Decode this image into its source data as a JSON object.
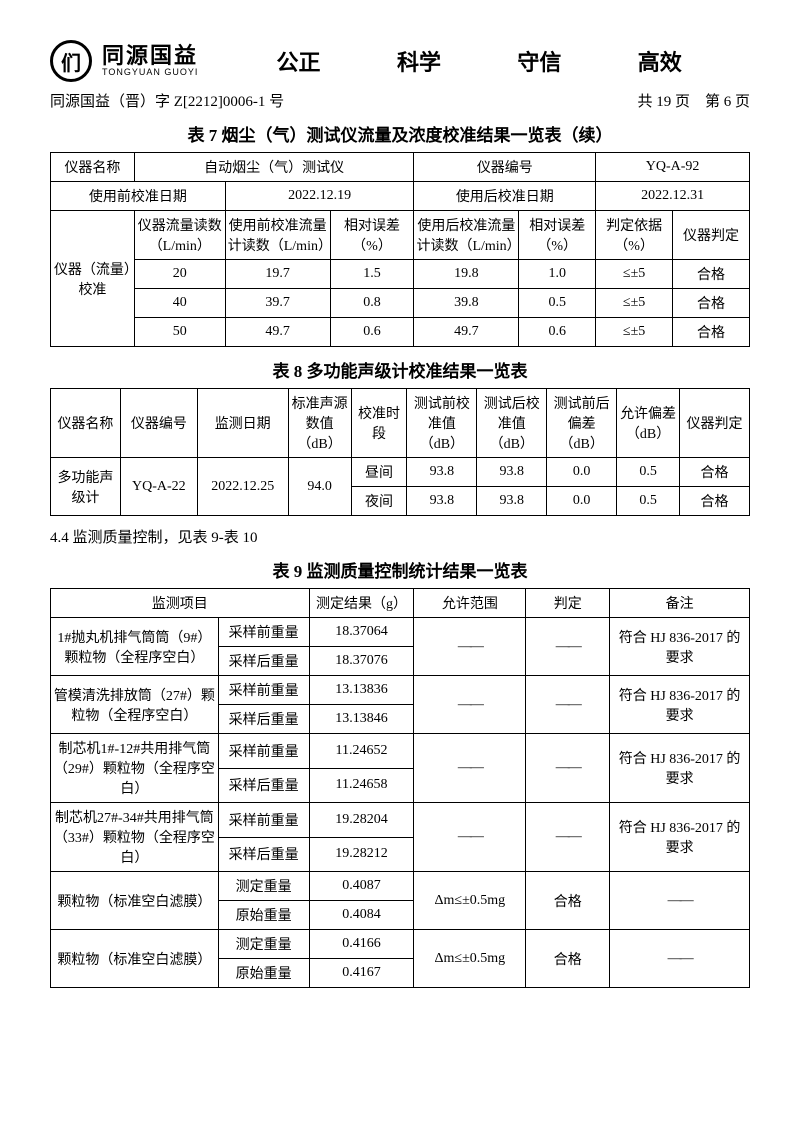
{
  "header": {
    "logo_glyph": "们",
    "brand_cn": "同源国益",
    "brand_en": "TONGYUAN GUOYI",
    "motto": [
      "公正",
      "科学",
      "守信",
      "高效"
    ]
  },
  "doc": {
    "refno": "同源国益（晋）字 Z[2212]0006-1 号",
    "pager": "共 19 页　第 6 页"
  },
  "t7": {
    "caption": "表 7 烟尘（气）测试仪流量及浓度校准结果一览表（续）",
    "h_name": "仪器名称",
    "v_name": "自动烟尘（气）测试仪",
    "h_sn": "仪器编号",
    "v_sn": "YQ-A-92",
    "h_pre_date": "使用前校准日期",
    "v_pre_date": "2022.12.19",
    "h_post_date": "使用后校准日期",
    "v_post_date": "2022.12.31",
    "rowhead": "仪器（流量）校准",
    "cols": [
      "仪器流量读数（L/min）",
      "使用前校准流量计读数（L/min）",
      "相对误差（%）",
      "使用后校准流量计读数（L/min）",
      "相对误差（%）",
      "判定依据（%）",
      "仪器判定"
    ],
    "rows": [
      [
        "20",
        "19.7",
        "1.5",
        "19.8",
        "1.0",
        "≤±5",
        "合格"
      ],
      [
        "40",
        "39.7",
        "0.8",
        "39.8",
        "0.5",
        "≤±5",
        "合格"
      ],
      [
        "50",
        "49.7",
        "0.6",
        "49.7",
        "0.6",
        "≤±5",
        "合格"
      ]
    ]
  },
  "t8": {
    "caption": "表 8  多功能声级计校准结果一览表",
    "cols": [
      "仪器名称",
      "仪器编号",
      "监测日期",
      "标准声源数值（dB）",
      "校准时段",
      "测试前校准值（dB）",
      "测试后校准值（dB）",
      "测试前后偏差（dB）",
      "允许偏差（dB）",
      "仪器判定"
    ],
    "name": "多功能声级计",
    "sn": "YQ-A-22",
    "date": "2022.12.25",
    "std": "94.0",
    "rows": [
      [
        "昼间",
        "93.8",
        "93.8",
        "0.0",
        "0.5",
        "合格"
      ],
      [
        "夜间",
        "93.8",
        "93.8",
        "0.0",
        "0.5",
        "合格"
      ]
    ]
  },
  "sect44": "4.4 监测质量控制，见表 9-表 10",
  "t9": {
    "caption": "表 9  监测质量控制统计结果一览表",
    "cols": [
      "监测项目",
      "",
      "测定结果（g）",
      "允许范围",
      "判定",
      "备注"
    ],
    "dash": "——",
    "note_hj": "符合 HJ 836-2017 的要求",
    "groups": [
      {
        "item": "1#抛丸机排气筒筒（9#）颗粒物（全程序空白）",
        "rows": [
          [
            "采样前重量",
            "18.37064"
          ],
          [
            "采样后重量",
            "18.37076"
          ]
        ]
      },
      {
        "item": "管模清洗排放筒（27#）颗粒物（全程序空白）",
        "rows": [
          [
            "采样前重量",
            "13.13836"
          ],
          [
            "采样后重量",
            "13.13846"
          ]
        ]
      },
      {
        "item": "制芯机1#-12#共用排气筒（29#）颗粒物（全程序空白）",
        "rows": [
          [
            "采样前重量",
            "11.24652"
          ],
          [
            "采样后重量",
            "11.24658"
          ]
        ]
      },
      {
        "item": "制芯机27#-34#共用排气筒（33#）颗粒物（全程序空白）",
        "rows": [
          [
            "采样前重量",
            "19.28204"
          ],
          [
            "采样后重量",
            "19.28212"
          ]
        ]
      }
    ],
    "pm": [
      {
        "item": "颗粒物（标准空白滤膜）",
        "rows": [
          [
            "测定重量",
            "0.4087"
          ],
          [
            "原始重量",
            "0.4084"
          ]
        ],
        "range": "Δm≤±0.5mg",
        "verdict": "合格"
      },
      {
        "item": "颗粒物（标准空白滤膜）",
        "rows": [
          [
            "测定重量",
            "0.4166"
          ],
          [
            "原始重量",
            "0.4167"
          ]
        ],
        "range": "Δm≤±0.5mg",
        "verdict": "合格"
      }
    ]
  }
}
